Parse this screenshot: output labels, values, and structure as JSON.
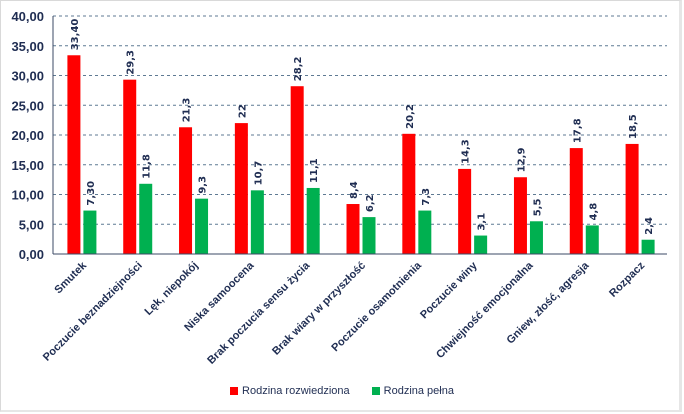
{
  "chart_data": {
    "type": "bar",
    "title": "",
    "xlabel": "",
    "ylabel": "",
    "ylim": [
      0,
      40
    ],
    "yticks": [
      "0,00",
      "5,00",
      "10,00",
      "15,00",
      "20,00",
      "25,00",
      "30,00",
      "35,00",
      "40,00"
    ],
    "grid": true,
    "legend_position": "bottom",
    "categories": [
      "Smutek",
      "Poczucie beznadziejności",
      "Lęk, niepokój",
      "Niska samoocena",
      "Brak poczucia sensu życia",
      "Brak wiary w przyszłość",
      "Poczucie osamotnienia",
      "Poczucie winy",
      "Chwiejność emocjonalna",
      "Gniew, złość, agresja",
      "Rozpacz"
    ],
    "series": [
      {
        "name": "Rodzina rozwiedziona",
        "color": "#ff0000",
        "values": [
          33.4,
          29.3,
          21.3,
          22,
          28.2,
          8.4,
          20.2,
          14.3,
          12.9,
          17.8,
          18.5
        ],
        "labels": [
          "33,40",
          "29,3",
          "21,3",
          "22",
          "28,2",
          "8,4",
          "20,2",
          "14,3",
          "12,9",
          "17,8",
          "18,5"
        ]
      },
      {
        "name": "Rodzina pełna",
        "color": "#00b050",
        "values": [
          7.3,
          11.8,
          9.3,
          10.7,
          11.1,
          6.2,
          7.3,
          3.1,
          5.5,
          4.8,
          2.4
        ],
        "labels": [
          "7,30",
          "11,8",
          "9,3",
          "10,7",
          "11,1",
          "6,2",
          "7,3",
          "3,1",
          "5,5",
          "4,8",
          "2,4"
        ]
      }
    ]
  }
}
